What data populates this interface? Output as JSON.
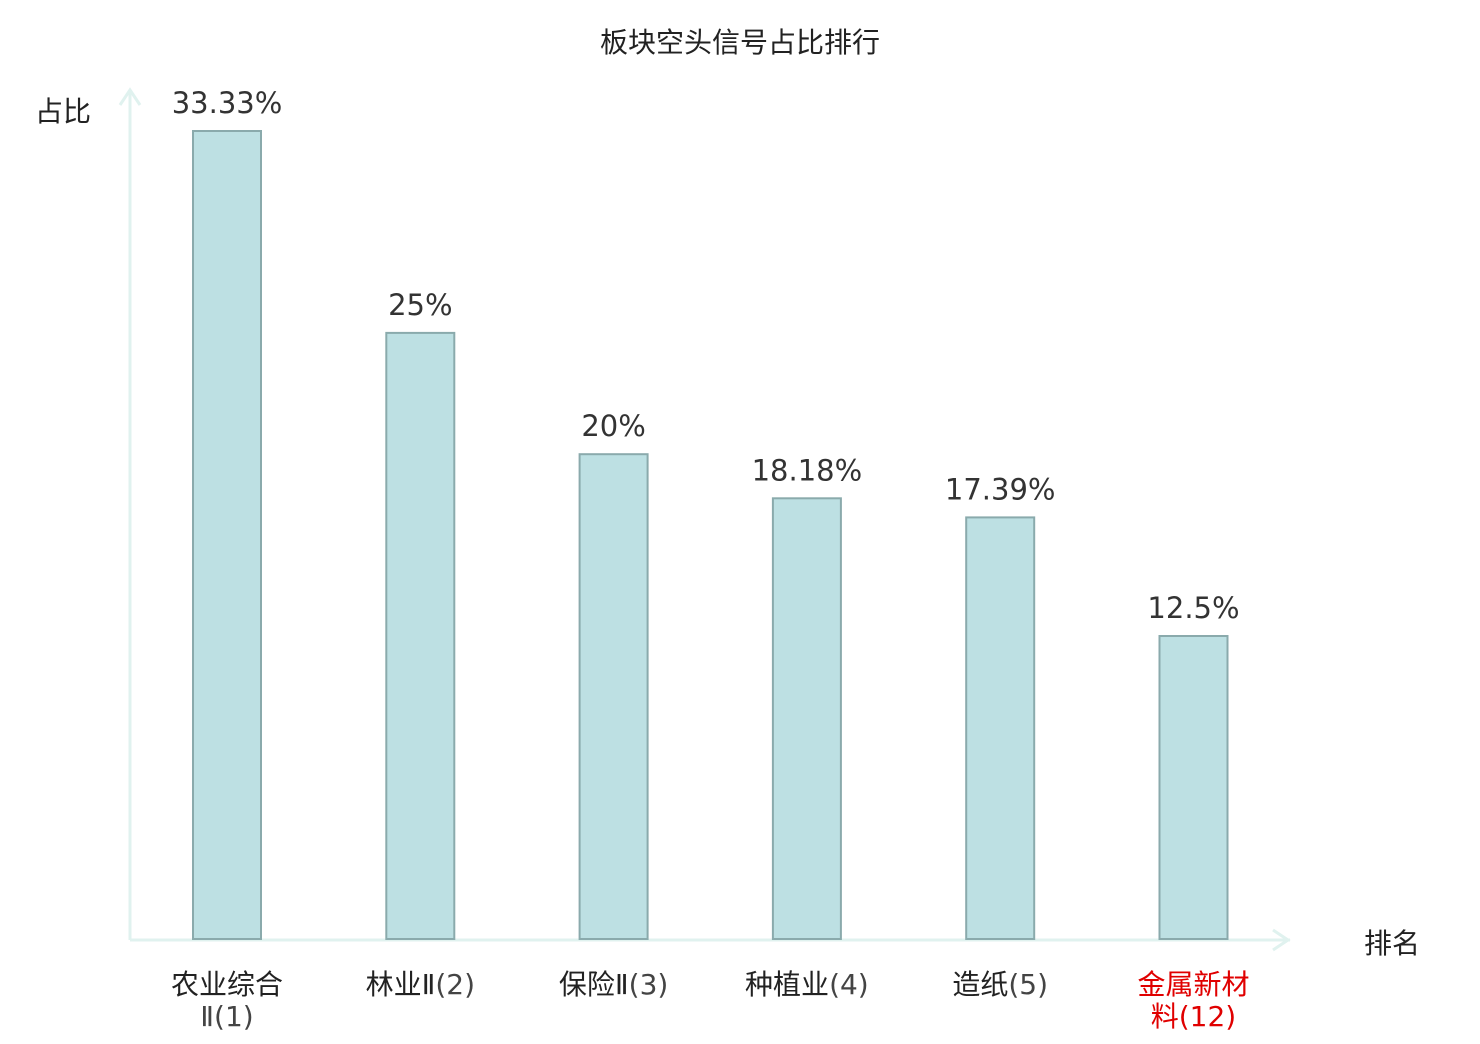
{
  "chart_data": {
    "type": "bar",
    "title": "板块空头信号占比排行",
    "xlabel": "排名",
    "ylabel": "占比",
    "ylim": [
      0,
      35
    ],
    "grid": false,
    "categories": [
      {
        "name": "农业综合",
        "rank": "Ⅱ(1)",
        "highlight": false
      },
      {
        "name": "林业Ⅱ",
        "rank": "(2)",
        "highlight": false
      },
      {
        "name": "保险Ⅱ",
        "rank": "(3)",
        "highlight": false
      },
      {
        "name": "种植业",
        "rank": "(4)",
        "highlight": false
      },
      {
        "name": "造纸",
        "rank": "(5)",
        "highlight": false
      },
      {
        "name": "金属新材",
        "rank": "料(12)",
        "highlight": true
      }
    ],
    "values": [
      33.33,
      25,
      20,
      18.18,
      17.39,
      12.5
    ],
    "value_labels": [
      "33.33%",
      "25%",
      "20%",
      "18.18%",
      "17.39%",
      "12.5%"
    ]
  },
  "colors": {
    "bar_fill": "#bde0e3",
    "bar_stroke": "#8aaaac",
    "axis": "#e0f2ef",
    "text": "#222222",
    "value_text": "#333333",
    "highlight": "#e00000"
  }
}
